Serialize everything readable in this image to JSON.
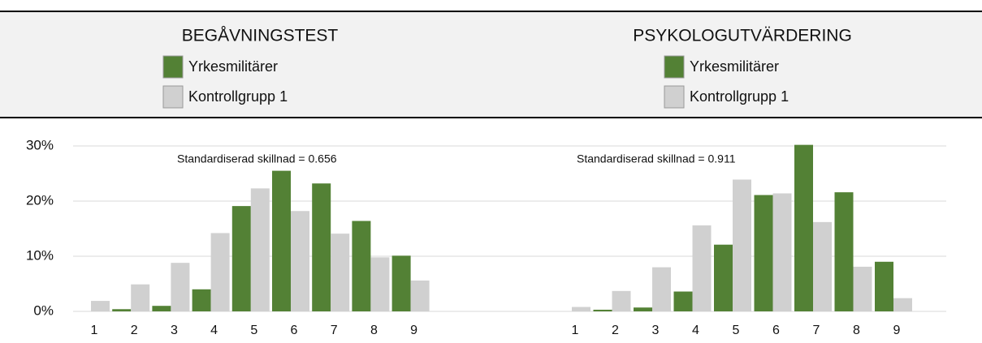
{
  "chart_data": [
    {
      "type": "bar",
      "title": "BEGÅVNINGSTEST",
      "annotation": "Standardiserad skillnad = 0.656",
      "categories": [
        "1",
        "2",
        "3",
        "4",
        "5",
        "6",
        "7",
        "8",
        "9"
      ],
      "series": [
        {
          "name": "Yrkesmilitärer",
          "color": "#538135",
          "values": [
            0,
            0.4,
            1.0,
            4.0,
            19.1,
            25.5,
            23.2,
            16.4,
            10.1
          ]
        },
        {
          "name": "Kontrollgrupp 1",
          "color": "#d0d0d0",
          "values": [
            1.9,
            4.9,
            8.8,
            14.2,
            22.3,
            18.2,
            14.1,
            9.8,
            5.6
          ]
        }
      ],
      "ylim": [
        0,
        30
      ],
      "yticks": [
        {
          "value": 0,
          "label": "0%"
        },
        {
          "value": 10,
          "label": "10%"
        },
        {
          "value": 20,
          "label": "20%"
        },
        {
          "value": 30,
          "label": "30%"
        }
      ],
      "grid": true
    },
    {
      "type": "bar",
      "title": "PSYKOLOGUTVÄRDERING",
      "annotation": "Standardiserad skillnad = 0.911",
      "categories": [
        "1",
        "2",
        "3",
        "4",
        "5",
        "6",
        "7",
        "8",
        "9"
      ],
      "series": [
        {
          "name": "Yrkesmilitärer",
          "color": "#538135",
          "values": [
            0,
            0.3,
            0.7,
            3.6,
            12.1,
            21.1,
            30.2,
            21.6,
            9.0
          ]
        },
        {
          "name": "Kontrollgrupp 1",
          "color": "#d0d0d0",
          "values": [
            0.8,
            3.7,
            8.0,
            15.6,
            23.9,
            21.4,
            16.2,
            8.1,
            2.4
          ]
        }
      ]
    }
  ]
}
